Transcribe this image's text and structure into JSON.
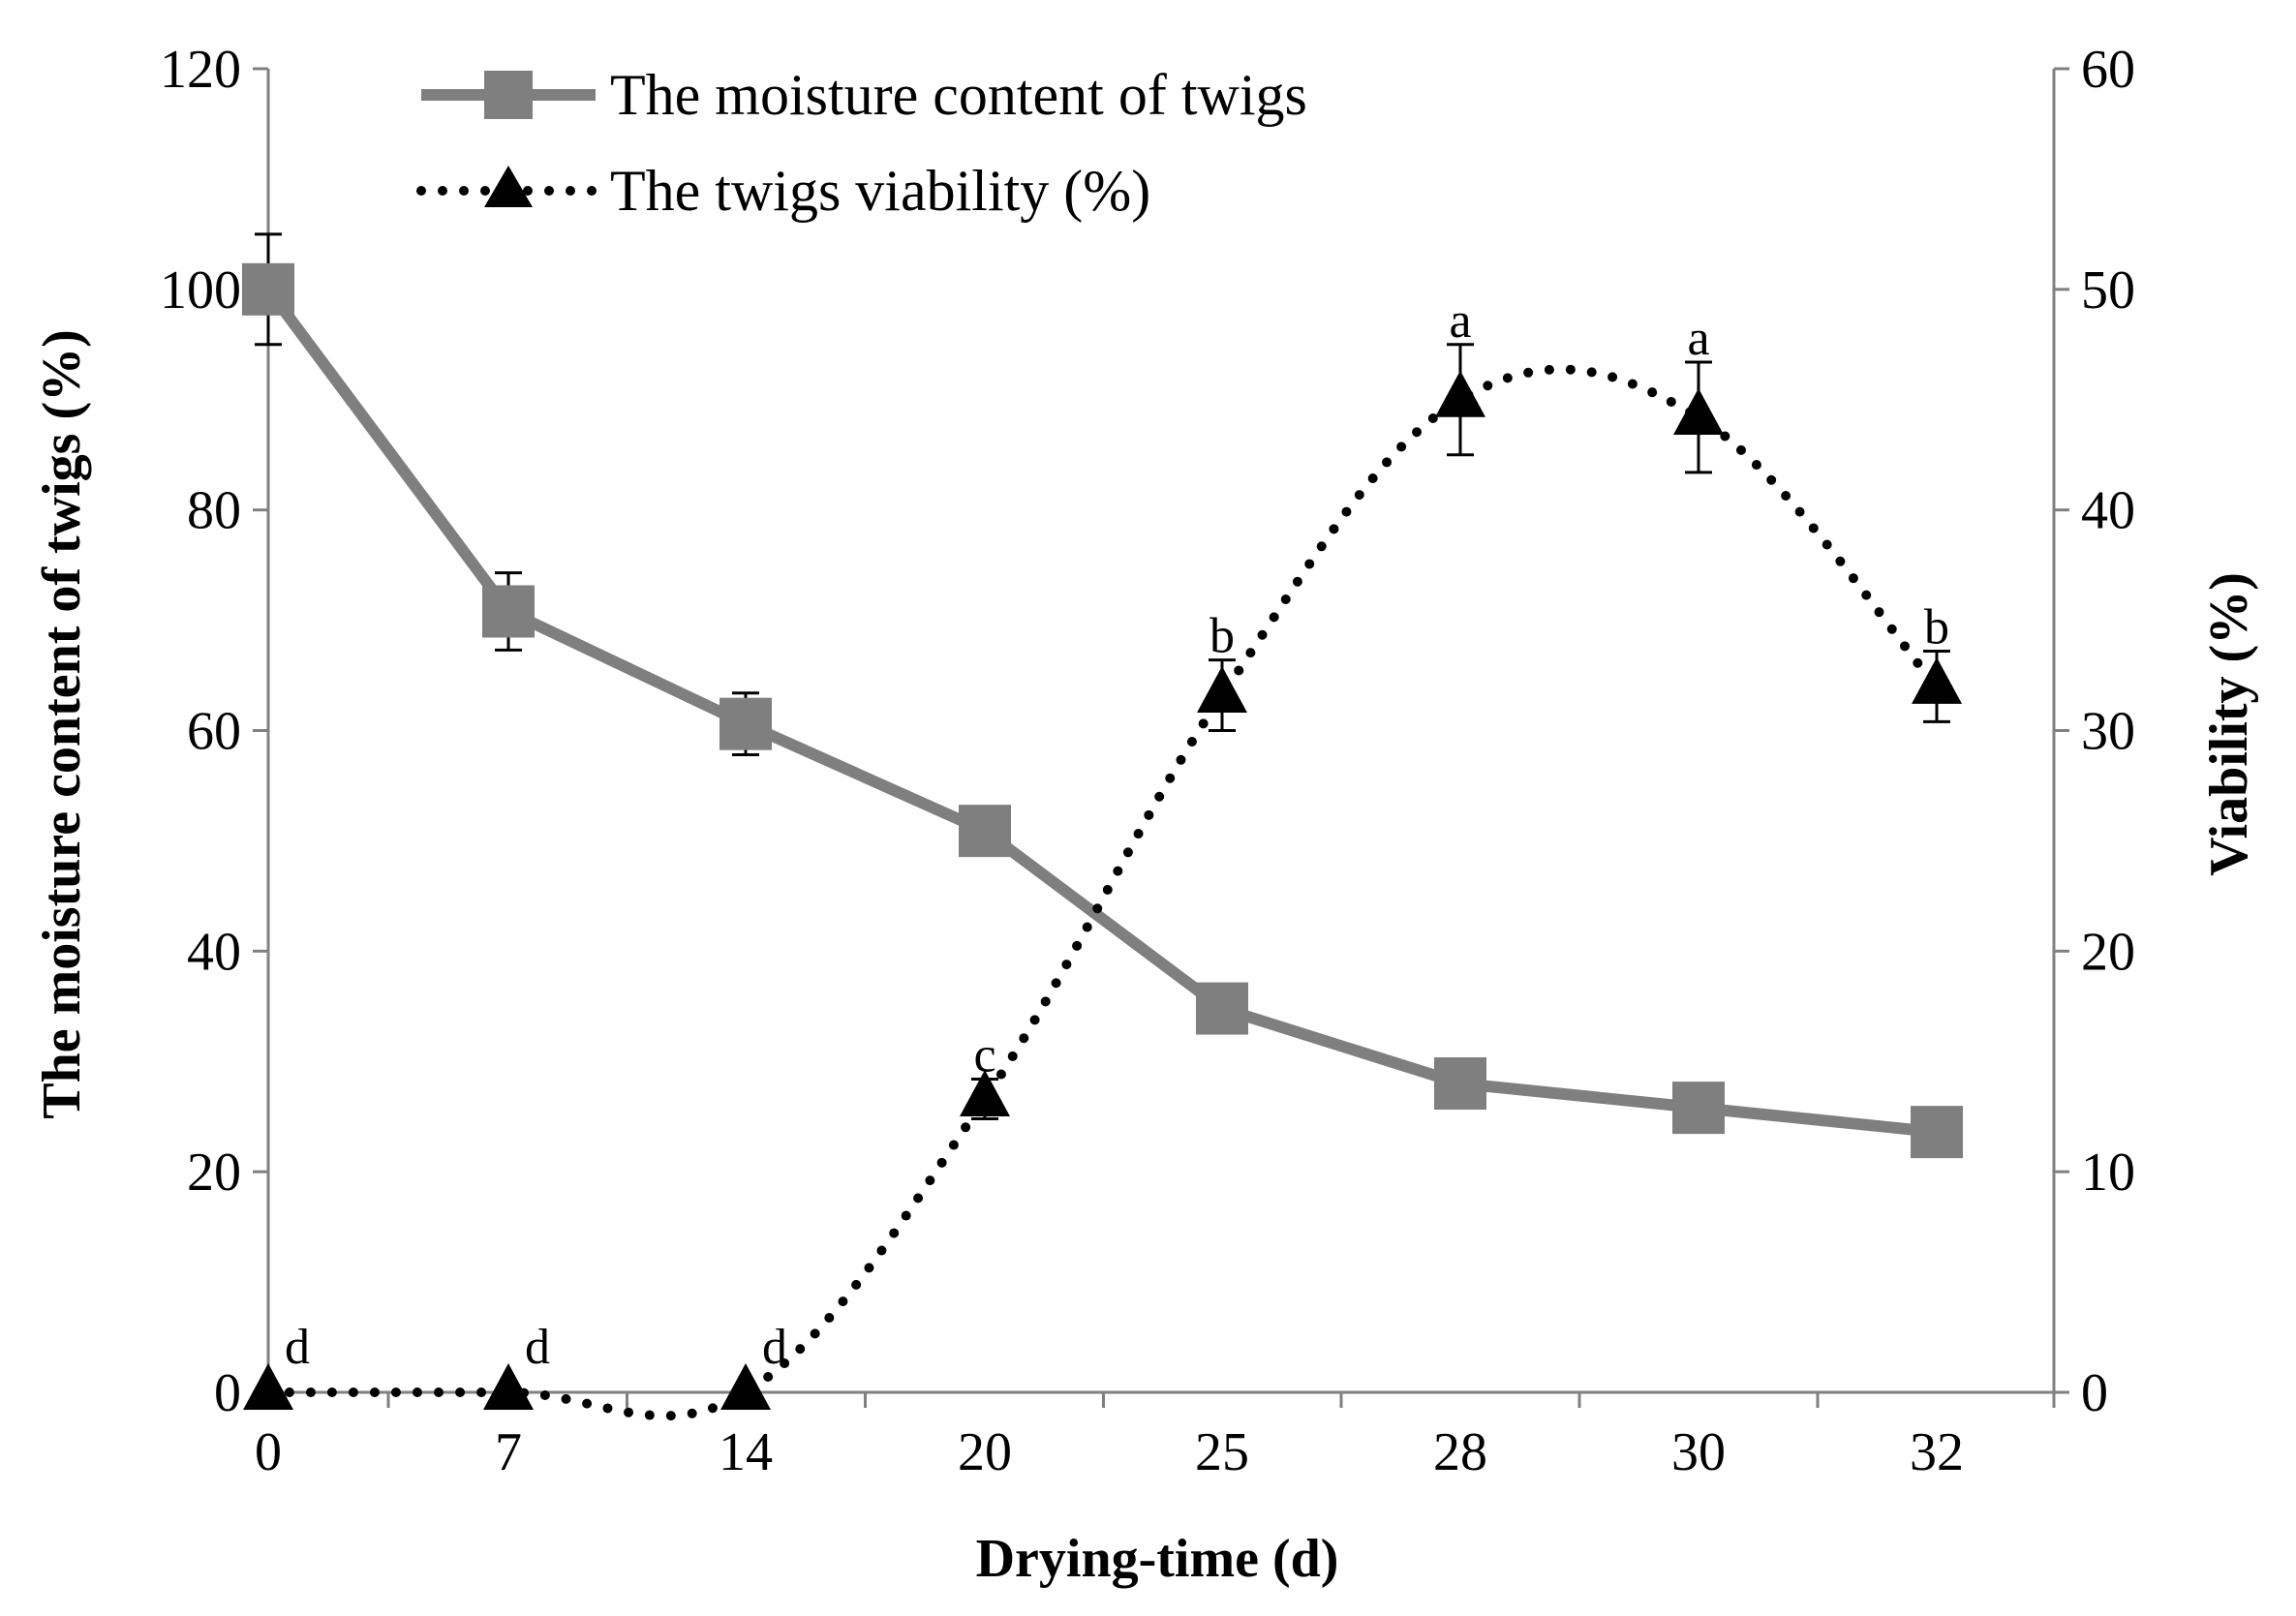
{
  "chart_data": {
    "type": "line",
    "categories": [
      "0",
      "7",
      "14",
      "20",
      "25",
      "28",
      "30",
      "32"
    ],
    "xlabel": "Drying-time (d)",
    "ylabel_left": "The moisture content of twigs (%)",
    "ylabel_right": "Viability (%)",
    "ylim_left": [
      0,
      120
    ],
    "ylim_right": [
      0,
      60
    ],
    "yticks_left": [
      "0",
      "20",
      "40",
      "60",
      "80",
      "100",
      "120"
    ],
    "yticks_right": [
      "0",
      "10",
      "20",
      "30",
      "40",
      "50",
      "60"
    ],
    "legend_position": "top-center",
    "series": [
      {
        "name": "The moisture content of twigs",
        "axis": "left",
        "color": "#7f7f7f",
        "marker": "square",
        "line": "solid",
        "values": [
          100,
          70.8,
          60.6,
          50.9,
          34.8,
          28.0,
          25.8,
          23.6
        ],
        "errors": [
          5.0,
          3.5,
          2.8,
          2.2,
          0,
          0,
          0,
          0
        ]
      },
      {
        "name": "The twigs viability (%)",
        "axis": "right",
        "color": "#000000",
        "marker": "triangle",
        "line": "dotted",
        "values": [
          0,
          0,
          0,
          13.3,
          31.6,
          45.0,
          44.2,
          32.0
        ],
        "errors": [
          0,
          0,
          0,
          0.9,
          1.6,
          2.5,
          2.5,
          1.6
        ],
        "significance_labels": [
          "d",
          "d",
          "d",
          "c",
          "b",
          "a",
          "a",
          "b"
        ]
      }
    ]
  }
}
